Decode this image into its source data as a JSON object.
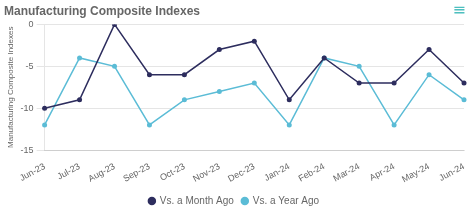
{
  "chart_data": {
    "type": "line",
    "title": "Manufacturing Composite Indexes",
    "y_label": "Manufacturing Composite Indexes",
    "categories": [
      "Jun-23",
      "Jul-23",
      "Aug-23",
      "Sep-23",
      "Oct-23",
      "Nov-23",
      "Dec-23",
      "Jan-24",
      "Feb-24",
      "Mar-24",
      "Apr-24",
      "May-24",
      "Jun-24"
    ],
    "series": [
      {
        "name": "Vs. a Month Ago",
        "color": "#2d2d5e",
        "values": [
          -10,
          -9,
          0,
          -6,
          -6,
          -3,
          -2,
          -9,
          -4,
          -7,
          -7,
          -3,
          -7
        ]
      },
      {
        "name": "Vs. a Year Ago",
        "color": "#5bbcd6",
        "values": [
          -12,
          -4,
          -5,
          -12,
          -9,
          -8,
          -7,
          -12,
          -4,
          -5,
          -12,
          -6,
          -9
        ]
      }
    ],
    "ylim": [
      -15,
      0
    ],
    "yticks": [
      0,
      -5,
      -10,
      -15
    ],
    "grid": "y",
    "legend": "bottom",
    "marker": "circle",
    "annotations": [
      {
        "text": "≡",
        "color": "#4dbfbf"
      }
    ]
  }
}
